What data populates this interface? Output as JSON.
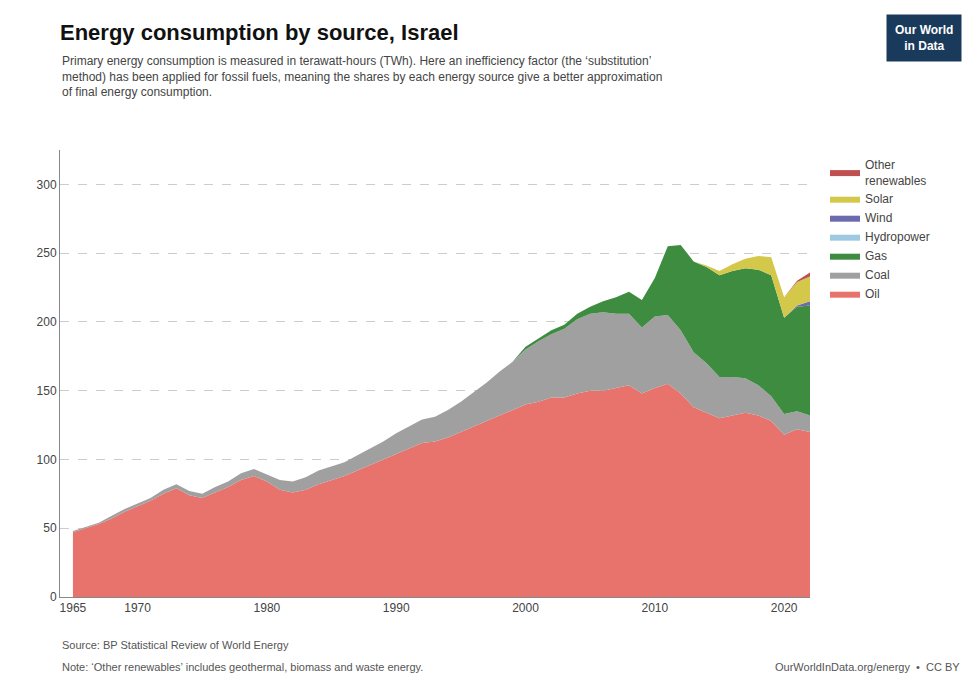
{
  "chart_data": {
    "type": "area",
    "stacked": true,
    "title": "Energy consumption by source, Israel",
    "subtitle": "Primary energy consumption is measured in terawatt-hours (TWh). Here an inefficiency factor (the ‘substitution’\nmethod) has been applied for fossil fuels, meaning the shares by each energy source give a better approximation\nof final energy consumption.",
    "annotations": [
      "Source: BP Statistical Review of World Energy",
      "Note: ‘Other renewables’ includes geothermal, biomass and waste energy.",
      "OurWorldInData.org/energy  •  CC BY",
      "Our World\nin Data"
    ],
    "x": [
      1965,
      1966,
      1967,
      1968,
      1969,
      1970,
      1971,
      1972,
      1973,
      1974,
      1975,
      1976,
      1977,
      1978,
      1979,
      1980,
      1981,
      1982,
      1983,
      1984,
      1985,
      1986,
      1987,
      1988,
      1989,
      1990,
      1991,
      1992,
      1993,
      1994,
      1995,
      1996,
      1997,
      1998,
      1999,
      2000,
      2001,
      2002,
      2003,
      2004,
      2005,
      2006,
      2007,
      2008,
      2009,
      2010,
      2011,
      2012,
      2013,
      2014,
      2015,
      2016,
      2017,
      2018,
      2019,
      2020,
      2021,
      2022
    ],
    "series": [
      {
        "name": "Oil",
        "color": "#e8736c",
        "values": [
          47,
          50,
          53,
          57,
          62,
          66,
          70,
          75,
          79,
          74,
          72,
          76,
          80,
          85,
          88,
          84,
          78,
          76,
          78,
          82,
          85,
          88,
          92,
          96,
          100,
          104,
          108,
          112,
          113,
          116,
          120,
          124,
          128,
          132,
          136,
          140,
          142,
          145,
          145,
          148,
          150,
          150,
          152,
          154,
          148,
          152,
          155,
          148,
          138,
          134,
          130,
          132,
          134,
          132,
          128,
          118,
          122,
          120
        ]
      },
      {
        "name": "Coal",
        "color": "#a0a0a0",
        "values": [
          1,
          1,
          1,
          2,
          2,
          2,
          2,
          3,
          3,
          3,
          3,
          4,
          4,
          5,
          5,
          5,
          7,
          8,
          9,
          10,
          10,
          10,
          11,
          12,
          13,
          15,
          16,
          17,
          18,
          20,
          22,
          25,
          28,
          32,
          35,
          40,
          44,
          46,
          50,
          54,
          56,
          57,
          54,
          52,
          48,
          52,
          50,
          46,
          40,
          36,
          30,
          28,
          25,
          22,
          18,
          15,
          13,
          12
        ]
      },
      {
        "name": "Gas",
        "color": "#3d8c40",
        "values": [
          0,
          0,
          0,
          0,
          0,
          0,
          0,
          0,
          0,
          0,
          0,
          0,
          0,
          0,
          0,
          0,
          0,
          0,
          0,
          0,
          0,
          0,
          0,
          0,
          0,
          0,
          0,
          0,
          0,
          0,
          0,
          0,
          0,
          0,
          0,
          2,
          2,
          3,
          3,
          4,
          5,
          8,
          12,
          16,
          20,
          28,
          50,
          62,
          66,
          70,
          74,
          77,
          80,
          84,
          88,
          70,
          76,
          80
        ]
      },
      {
        "name": "Hydropower",
        "color": "#9ecae1",
        "values": [
          0,
          0,
          0,
          0,
          0,
          0,
          0,
          0,
          0,
          0,
          0,
          0,
          0,
          0,
          0,
          0,
          0,
          0,
          0,
          0,
          0,
          0,
          0,
          0,
          0,
          0,
          0,
          0,
          0,
          0,
          0,
          0,
          0,
          0,
          0,
          0,
          0,
          0,
          0,
          0,
          0,
          0,
          0,
          0,
          0,
          0,
          0,
          0,
          0,
          0,
          0,
          0,
          0,
          0,
          0,
          0,
          0,
          0
        ]
      },
      {
        "name": "Wind",
        "color": "#6b6bae",
        "values": [
          0,
          0,
          0,
          0,
          0,
          0,
          0,
          0,
          0,
          0,
          0,
          0,
          0,
          0,
          0,
          0,
          0,
          0,
          0,
          0,
          0,
          0,
          0,
          0,
          0,
          0,
          0,
          0,
          0,
          0,
          0,
          0,
          0,
          0,
          0,
          0,
          0,
          0,
          0,
          0,
          0,
          0,
          0,
          0,
          0,
          0,
          0,
          0,
          0,
          0,
          0,
          0,
          0,
          0,
          0,
          0,
          1,
          3
        ]
      },
      {
        "name": "Solar",
        "color": "#d4c84a",
        "values": [
          0,
          0,
          0,
          0,
          0,
          0,
          0,
          0,
          0,
          0,
          0,
          0,
          0,
          0,
          0,
          0,
          0,
          0,
          0,
          0,
          0,
          0,
          0,
          0,
          0,
          0,
          0,
          0,
          0,
          0,
          0,
          0,
          0,
          0,
          0,
          0,
          0,
          0,
          0,
          0,
          0,
          0,
          0,
          0,
          0,
          0,
          0,
          0,
          0,
          1,
          3,
          5,
          7,
          10,
          13,
          15,
          17,
          18
        ]
      },
      {
        "name": "Other\nrenewables",
        "color": "#c05050",
        "values": [
          0,
          0,
          0,
          0,
          0,
          0,
          0,
          0,
          0,
          0,
          0,
          0,
          0,
          0,
          0,
          0,
          0,
          0,
          0,
          0,
          0,
          0,
          0,
          0,
          0,
          0,
          0,
          0,
          0,
          0,
          0,
          0,
          0,
          0,
          0,
          0,
          0,
          0,
          0,
          0,
          0,
          0,
          0,
          0,
          0,
          0,
          0,
          0,
          0,
          0,
          0,
          0,
          0,
          0,
          0,
          0,
          1,
          3
        ]
      }
    ],
    "xlim": [
      1964,
      2022
    ],
    "xticks": [
      1965,
      1970,
      1980,
      1990,
      2000,
      2010,
      2020
    ],
    "ylim": [
      0,
      325
    ],
    "yticks": [
      0,
      50,
      100,
      150,
      200,
      250,
      300
    ],
    "grid": true,
    "legend": "right"
  }
}
